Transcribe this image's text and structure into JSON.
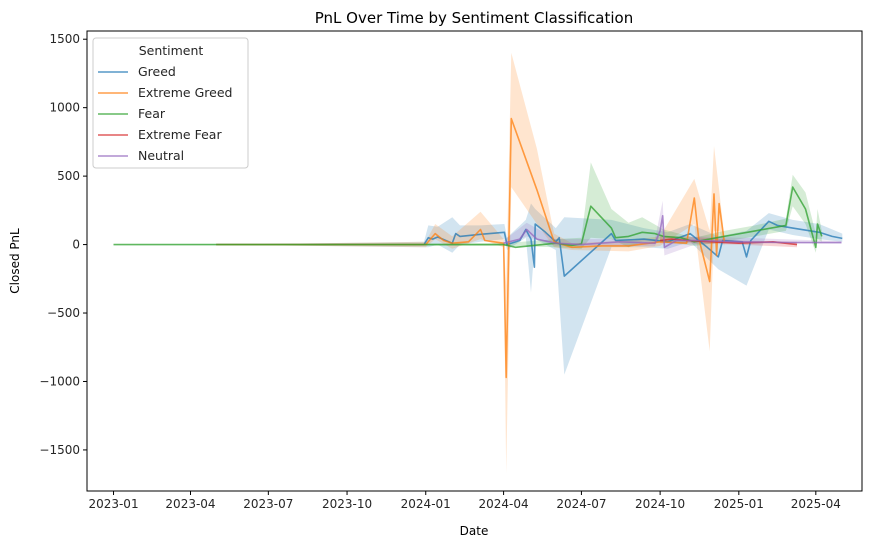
{
  "chart_data": {
    "type": "line",
    "title": "PnL Over Time by Sentiment Classification",
    "xlabel": "Date",
    "ylabel": "Closed PnL",
    "x_ticks": [
      "2023-01",
      "2023-04",
      "2023-07",
      "2023-10",
      "2024-01",
      "2024-04",
      "2024-07",
      "2024-10",
      "2025-01",
      "2025-04"
    ],
    "y_ticks": [
      1500,
      1000,
      500,
      0,
      -500,
      -1000,
      -1500
    ],
    "xlim": [
      "2022-12-01",
      "2025-05-25"
    ],
    "ylim": [
      -1800,
      1560
    ],
    "legend": {
      "title": "Sentiment",
      "placement": "top-left"
    },
    "grid": false,
    "series": [
      {
        "name": "Greed",
        "color": "#1f77b4",
        "points": [
          [
            "2023-05-01",
            0
          ],
          [
            "2023-12-30",
            0
          ],
          [
            "2024-01-04",
            50
          ],
          [
            "2024-01-09",
            40
          ],
          [
            "2024-01-15",
            55
          ],
          [
            "2024-02-01",
            10
          ],
          [
            "2024-02-05",
            80
          ],
          [
            "2024-02-10",
            60
          ],
          [
            "2024-03-05",
            75
          ],
          [
            "2024-04-02",
            90
          ],
          [
            "2024-04-05",
            0
          ],
          [
            "2024-04-20",
            30
          ],
          [
            "2024-04-27",
            110
          ],
          [
            "2024-05-03",
            40
          ],
          [
            "2024-05-07",
            -165
          ],
          [
            "2024-05-08",
            150
          ],
          [
            "2024-05-20",
            90
          ],
          [
            "2024-06-01",
            20
          ],
          [
            "2024-06-05",
            50
          ],
          [
            "2024-06-11",
            -230
          ],
          [
            "2024-08-05",
            80
          ],
          [
            "2024-08-10",
            30
          ],
          [
            "2024-09-12",
            40
          ],
          [
            "2024-10-10",
            20
          ],
          [
            "2024-11-05",
            80
          ],
          [
            "2024-11-25",
            -20
          ],
          [
            "2024-12-08",
            -90
          ],
          [
            "2024-12-13",
            30
          ],
          [
            "2025-01-05",
            20
          ],
          [
            "2025-01-10",
            -90
          ],
          [
            "2025-01-15",
            30
          ],
          [
            "2025-02-05",
            170
          ],
          [
            "2025-02-15",
            140
          ],
          [
            "2025-03-05",
            120
          ],
          [
            "2025-04-05",
            90
          ],
          [
            "2025-04-20",
            60
          ],
          [
            "2025-05-02",
            45
          ]
        ],
        "band": [
          [
            "2023-05-01",
            0,
            0
          ],
          [
            "2023-12-30",
            -20,
            20
          ],
          [
            "2024-01-04",
            -20,
            140
          ],
          [
            "2024-01-15",
            0,
            130
          ],
          [
            "2024-02-01",
            -60,
            200
          ],
          [
            "2024-02-10",
            0,
            140
          ],
          [
            "2024-03-05",
            20,
            140
          ],
          [
            "2024-04-02",
            40,
            150
          ],
          [
            "2024-04-05",
            -40,
            50
          ],
          [
            "2024-04-27",
            50,
            180
          ],
          [
            "2024-05-03",
            -350,
            300
          ],
          [
            "2024-05-08",
            40,
            260
          ],
          [
            "2024-06-01",
            -40,
            120
          ],
          [
            "2024-06-11",
            -950,
            200
          ],
          [
            "2024-08-05",
            -20,
            180
          ],
          [
            "2024-09-12",
            -20,
            120
          ],
          [
            "2024-10-10",
            -30,
            90
          ],
          [
            "2024-11-05",
            20,
            150
          ],
          [
            "2024-12-08",
            -180,
            60
          ],
          [
            "2025-01-10",
            -300,
            100
          ],
          [
            "2025-02-05",
            110,
            230
          ],
          [
            "2025-03-05",
            70,
            180
          ],
          [
            "2025-04-05",
            40,
            150
          ],
          [
            "2025-05-02",
            20,
            80
          ]
        ]
      },
      {
        "name": "Extreme Greed",
        "color": "#ff7f0e",
        "points": [
          [
            "2023-05-01",
            0
          ],
          [
            "2024-01-01",
            0
          ],
          [
            "2024-01-12",
            80
          ],
          [
            "2024-01-22",
            30
          ],
          [
            "2024-02-01",
            10
          ],
          [
            "2024-02-20",
            20
          ],
          [
            "2024-03-05",
            110
          ],
          [
            "2024-03-10",
            30
          ],
          [
            "2024-04-01",
            10
          ],
          [
            "2024-04-04",
            -970
          ],
          [
            "2024-04-10",
            920
          ],
          [
            "2024-05-10",
            400
          ],
          [
            "2024-05-30",
            20
          ],
          [
            "2024-06-20",
            -20
          ],
          [
            "2024-07-25",
            -10
          ],
          [
            "2024-08-25",
            -10
          ],
          [
            "2024-10-01",
            20
          ],
          [
            "2024-11-01",
            10
          ],
          [
            "2024-11-10",
            340
          ],
          [
            "2024-11-15",
            50
          ],
          [
            "2024-11-28",
            -270
          ],
          [
            "2024-12-03",
            370
          ],
          [
            "2024-12-06",
            -80
          ],
          [
            "2024-12-09",
            300
          ],
          [
            "2024-12-15",
            20
          ]
        ],
        "band": [
          [
            "2023-05-01",
            0,
            0
          ],
          [
            "2024-01-01",
            -20,
            20
          ],
          [
            "2024-01-12",
            40,
            150
          ],
          [
            "2024-02-01",
            -30,
            60
          ],
          [
            "2024-03-05",
            40,
            240
          ],
          [
            "2024-04-01",
            -20,
            40
          ],
          [
            "2024-04-04",
            -1670,
            -300
          ],
          [
            "2024-04-10",
            420,
            1400
          ],
          [
            "2024-05-10",
            150,
            700
          ],
          [
            "2024-05-30",
            -20,
            80
          ],
          [
            "2024-06-20",
            -40,
            10
          ],
          [
            "2024-08-25",
            -50,
            30
          ],
          [
            "2024-10-01",
            -10,
            60
          ],
          [
            "2024-11-10",
            150,
            480
          ],
          [
            "2024-11-28",
            -780,
            100
          ],
          [
            "2024-12-03",
            100,
            720
          ],
          [
            "2024-12-09",
            100,
            400
          ],
          [
            "2024-12-15",
            -10,
            60
          ]
        ]
      },
      {
        "name": "Fear",
        "color": "#2ca02c",
        "points": [
          [
            "2023-01-01",
            0
          ],
          [
            "2024-04-01",
            0
          ],
          [
            "2024-04-15",
            -20
          ],
          [
            "2024-06-01",
            10
          ],
          [
            "2024-06-20",
            -5
          ],
          [
            "2024-07-01",
            5
          ],
          [
            "2024-07-12",
            280
          ],
          [
            "2024-08-05",
            120
          ],
          [
            "2024-08-10",
            50
          ],
          [
            "2024-08-25",
            60
          ],
          [
            "2024-09-10",
            90
          ],
          [
            "2024-09-25",
            80
          ],
          [
            "2024-10-05",
            60
          ],
          [
            "2024-10-25",
            50
          ],
          [
            "2024-11-10",
            20
          ],
          [
            "2024-12-15",
            60
          ],
          [
            "2025-01-20",
            100
          ],
          [
            "2025-02-25",
            140
          ],
          [
            "2025-03-05",
            420
          ],
          [
            "2025-03-20",
            260
          ],
          [
            "2025-04-01",
            -20
          ],
          [
            "2025-04-03",
            150
          ],
          [
            "2025-04-08",
            60
          ]
        ],
        "band": [
          [
            "2023-01-01",
            0,
            0
          ],
          [
            "2024-04-01",
            -10,
            10
          ],
          [
            "2024-06-01",
            -20,
            40
          ],
          [
            "2024-07-01",
            -30,
            50
          ],
          [
            "2024-07-12",
            50,
            600
          ],
          [
            "2024-08-05",
            40,
            260
          ],
          [
            "2024-08-25",
            -20,
            160
          ],
          [
            "2024-09-10",
            20,
            200
          ],
          [
            "2024-10-05",
            20,
            110
          ],
          [
            "2024-11-10",
            -10,
            50
          ],
          [
            "2024-12-15",
            20,
            100
          ],
          [
            "2025-01-20",
            60,
            140
          ],
          [
            "2025-02-25",
            100,
            190
          ],
          [
            "2025-03-05",
            280,
            510
          ],
          [
            "2025-03-20",
            150,
            380
          ],
          [
            "2025-04-01",
            -60,
            80
          ],
          [
            "2025-04-03",
            40,
            260
          ],
          [
            "2025-04-08",
            20,
            100
          ]
        ]
      },
      {
        "name": "Extreme Fear",
        "color": "#d62728",
        "points": [
          [
            "2024-10-01",
            30
          ],
          [
            "2024-10-15",
            40
          ],
          [
            "2024-11-01",
            30
          ],
          [
            "2024-12-01",
            20
          ],
          [
            "2025-01-01",
            10
          ],
          [
            "2025-02-10",
            20
          ],
          [
            "2025-03-10",
            0
          ]
        ],
        "band": [
          [
            "2024-10-01",
            10,
            60
          ],
          [
            "2024-11-01",
            10,
            60
          ],
          [
            "2025-01-01",
            0,
            30
          ],
          [
            "2025-03-10",
            -20,
            20
          ]
        ]
      },
      {
        "name": "Neutral",
        "color": "#9467bd",
        "points": [
          [
            "2024-04-01",
            10
          ],
          [
            "2024-04-20",
            40
          ],
          [
            "2024-04-28",
            110
          ],
          [
            "2024-05-10",
            40
          ],
          [
            "2024-06-01",
            10
          ],
          [
            "2024-07-01",
            0
          ],
          [
            "2024-08-15",
            20
          ],
          [
            "2024-09-25",
            10
          ],
          [
            "2024-10-01",
            100
          ],
          [
            "2024-10-04",
            210
          ],
          [
            "2024-10-06",
            -20
          ],
          [
            "2024-10-20",
            30
          ],
          [
            "2024-11-15",
            30
          ],
          [
            "2025-01-01",
            20
          ],
          [
            "2025-03-01",
            15
          ],
          [
            "2025-05-01",
            15
          ]
        ],
        "band": [
          [
            "2024-04-01",
            -10,
            30
          ],
          [
            "2024-04-28",
            60,
            160
          ],
          [
            "2024-06-01",
            -10,
            40
          ],
          [
            "2024-09-25",
            -10,
            40
          ],
          [
            "2024-10-04",
            100,
            320
          ],
          [
            "2024-10-06",
            -80,
            30
          ],
          [
            "2024-11-15",
            10,
            60
          ],
          [
            "2025-05-01",
            5,
            25
          ]
        ]
      }
    ]
  }
}
